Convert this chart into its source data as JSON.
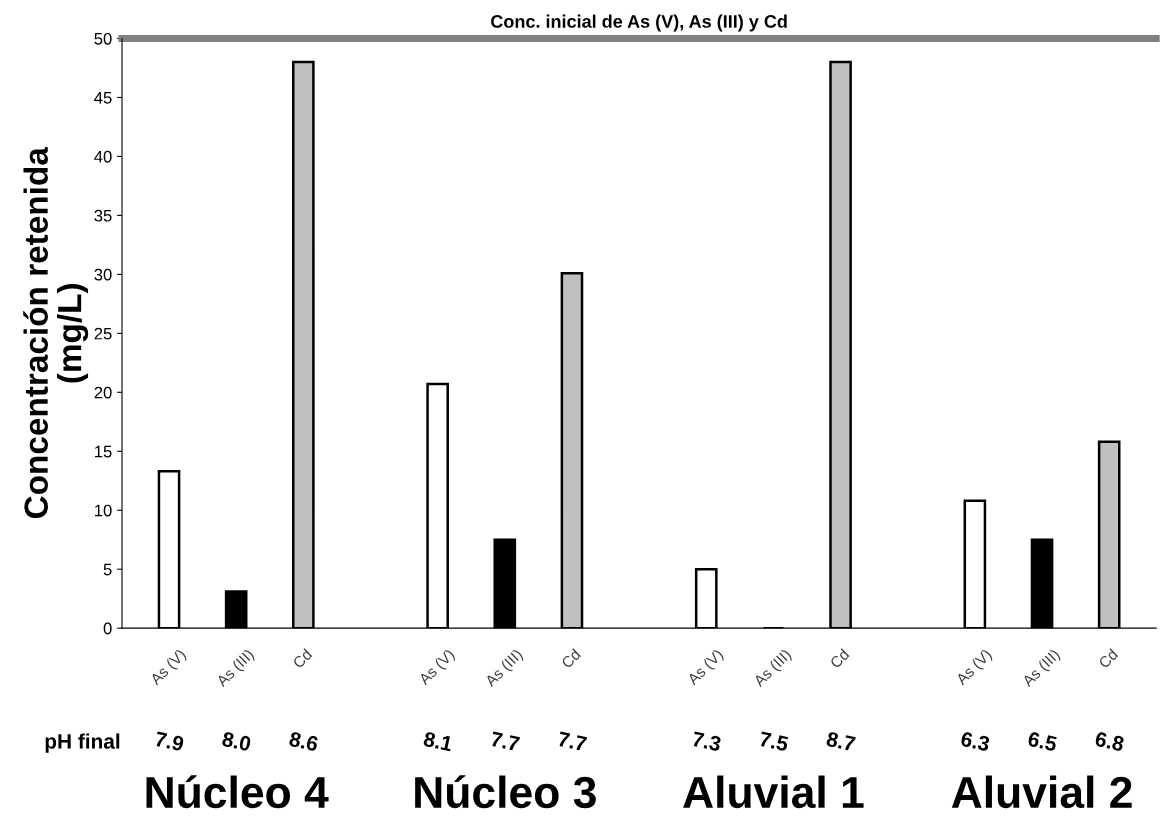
{
  "chart_data": {
    "type": "bar",
    "ylabel": "Concentración retenida\n(mg/L)",
    "categories": [
      "As (V)",
      "As (III)",
      "Cd",
      null,
      "As (V)",
      "As (III)",
      "Cd",
      null,
      "As (V)",
      "As (III)",
      "Cd",
      null,
      "As (V)",
      "As (III)",
      "Cd"
    ],
    "values": [
      13.3,
      3.1,
      48,
      null,
      20.7,
      7.5,
      30.1,
      null,
      5.0,
      0,
      48,
      null,
      10.8,
      7.5,
      15.8
    ],
    "colors": [
      "#ffffff",
      "#000000",
      "#c0c0c0",
      null,
      "#ffffff",
      "#000000",
      "#c0c0c0",
      null,
      "#ffffff",
      "#000000",
      "#c0c0c0",
      null,
      "#ffffff",
      "#000000",
      "#c0c0c0"
    ],
    "ylim": [
      0,
      50
    ],
    "yticks": [
      0,
      5,
      10,
      15,
      20,
      25,
      30,
      35,
      40,
      45,
      50
    ],
    "grid": false,
    "legend": false,
    "ref_lines": [
      {
        "axis": "y",
        "value": 50,
        "label": "Conc. inicial de As (V), As (III) y Cd",
        "color": "#808080"
      }
    ],
    "annotations": [
      "pH final",
      "7.9",
      "8.0",
      "8.6",
      "8.1",
      "7.7",
      "7.7",
      "7.3",
      "7.5",
      "8.7",
      "6.3",
      "6.5",
      "6.8",
      "Núcleo 4",
      "Núcleo 3",
      "Aluvial 1",
      "Aluvial 2"
    ]
  }
}
